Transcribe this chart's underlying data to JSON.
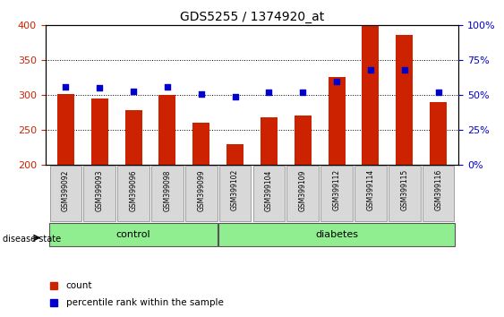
{
  "title": "GDS5255 / 1374920_at",
  "samples": [
    "GSM399092",
    "GSM399093",
    "GSM399096",
    "GSM399098",
    "GSM399099",
    "GSM399102",
    "GSM399104",
    "GSM399109",
    "GSM399112",
    "GSM399114",
    "GSM399115",
    "GSM399116"
  ],
  "counts": [
    302,
    295,
    278,
    300,
    261,
    229,
    268,
    271,
    326,
    400,
    386,
    290
  ],
  "percentile_ranks": [
    56,
    55,
    53,
    56,
    51,
    49,
    52,
    52,
    60,
    68,
    68,
    52
  ],
  "groups": [
    "control",
    "control",
    "control",
    "control",
    "control",
    "diabetes",
    "diabetes",
    "diabetes",
    "diabetes",
    "diabetes",
    "diabetes",
    "diabetes"
  ],
  "control_color": "#90EE90",
  "diabetes_color": "#90EE90",
  "bar_color": "#CC2200",
  "dot_color": "#0000CC",
  "ymin": 200,
  "ymax": 400,
  "yticks": [
    200,
    250,
    300,
    350,
    400
  ],
  "y2ticks": [
    0,
    25,
    50,
    75,
    100
  ],
  "y2tick_labels": [
    "0%",
    "25%",
    "50%",
    "75%",
    "100%"
  ],
  "bg_color": "#FFFFFF",
  "grid_color": "#000000",
  "xlabel_color": "#000000",
  "count_color": "#CC2200",
  "percentile_color": "#0000CC",
  "legend_count": "count",
  "legend_pct": "percentile rank within the sample",
  "disease_state_label": "disease state",
  "control_label": "control",
  "diabetes_label": "diabetes",
  "bar_width": 0.5
}
